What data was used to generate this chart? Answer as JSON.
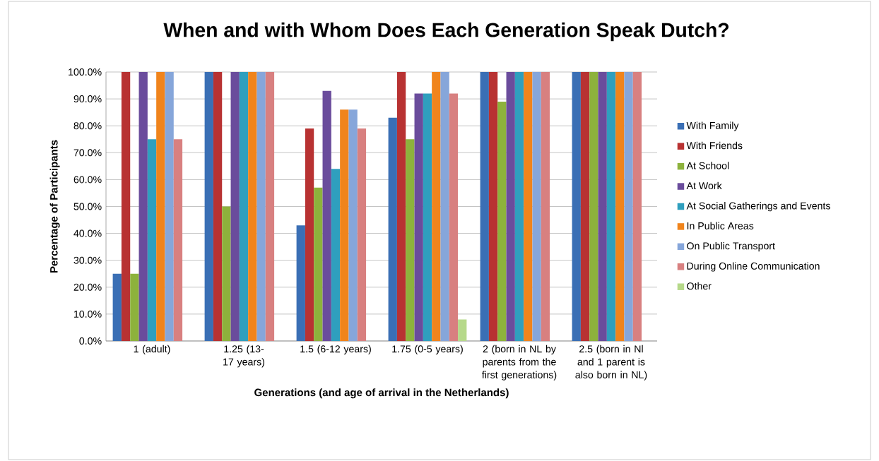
{
  "chart_data": {
    "type": "bar",
    "title": "When and with Whom Does Each Generation Speak Dutch?",
    "xlabel": "Generations (and age of arrival in the Netherlands)",
    "ylabel": "Percentage of Participants",
    "categories": [
      "1 (adult)",
      "1.25 (13-17 years)",
      "1.5 (6-12 years)",
      "1.75 (0-5 years)",
      "2 (born in NL by parents from the first generations)",
      "2.5 (born in Nl and 1 parent is also born in NL)"
    ],
    "series": [
      {
        "name": "With Family",
        "color": "#3a6fb5",
        "values": [
          25,
          100,
          43,
          83,
          100,
          100
        ]
      },
      {
        "name": "With Friends",
        "color": "#b83232",
        "values": [
          100,
          100,
          79,
          100,
          100,
          100
        ]
      },
      {
        "name": "At School",
        "color": "#8db23c",
        "values": [
          25,
          50,
          57,
          75,
          89,
          100
        ]
      },
      {
        "name": "At Work",
        "color": "#6a4c9c",
        "values": [
          100,
          100,
          93,
          92,
          100,
          100
        ]
      },
      {
        "name": "At Social Gatherings and Events",
        "color": "#2f9fbe",
        "values": [
          75,
          100,
          64,
          92,
          100,
          100
        ]
      },
      {
        "name": "In Public Areas",
        "color": "#f0841c",
        "values": [
          100,
          100,
          86,
          100,
          100,
          100
        ]
      },
      {
        "name": "On Public Transport",
        "color": "#86a6da",
        "values": [
          100,
          100,
          86,
          100,
          100,
          100
        ]
      },
      {
        "name": "During Online Communication",
        "color": "#d88080",
        "values": [
          75,
          100,
          79,
          92,
          100,
          100
        ]
      },
      {
        "name": "Other",
        "color": "#b6d98a",
        "values": [
          0,
          0,
          0,
          8,
          0,
          0
        ]
      }
    ],
    "ylim": [
      0,
      100
    ],
    "yticks": [
      {
        "value": 0,
        "label": "0.0%"
      },
      {
        "value": 10,
        "label": "10.0%"
      },
      {
        "value": 20,
        "label": "20.0%"
      },
      {
        "value": 30,
        "label": "30.0%"
      },
      {
        "value": 40,
        "label": "40.0%"
      },
      {
        "value": 50,
        "label": "50.0%"
      },
      {
        "value": 60,
        "label": "60.0%"
      },
      {
        "value": 70,
        "label": "70.0%"
      },
      {
        "value": 80,
        "label": "80.0%"
      },
      {
        "value": 90,
        "label": "90.0%"
      },
      {
        "value": 100,
        "label": "100.0%"
      }
    ],
    "grid": "y",
    "legend": "right"
  }
}
